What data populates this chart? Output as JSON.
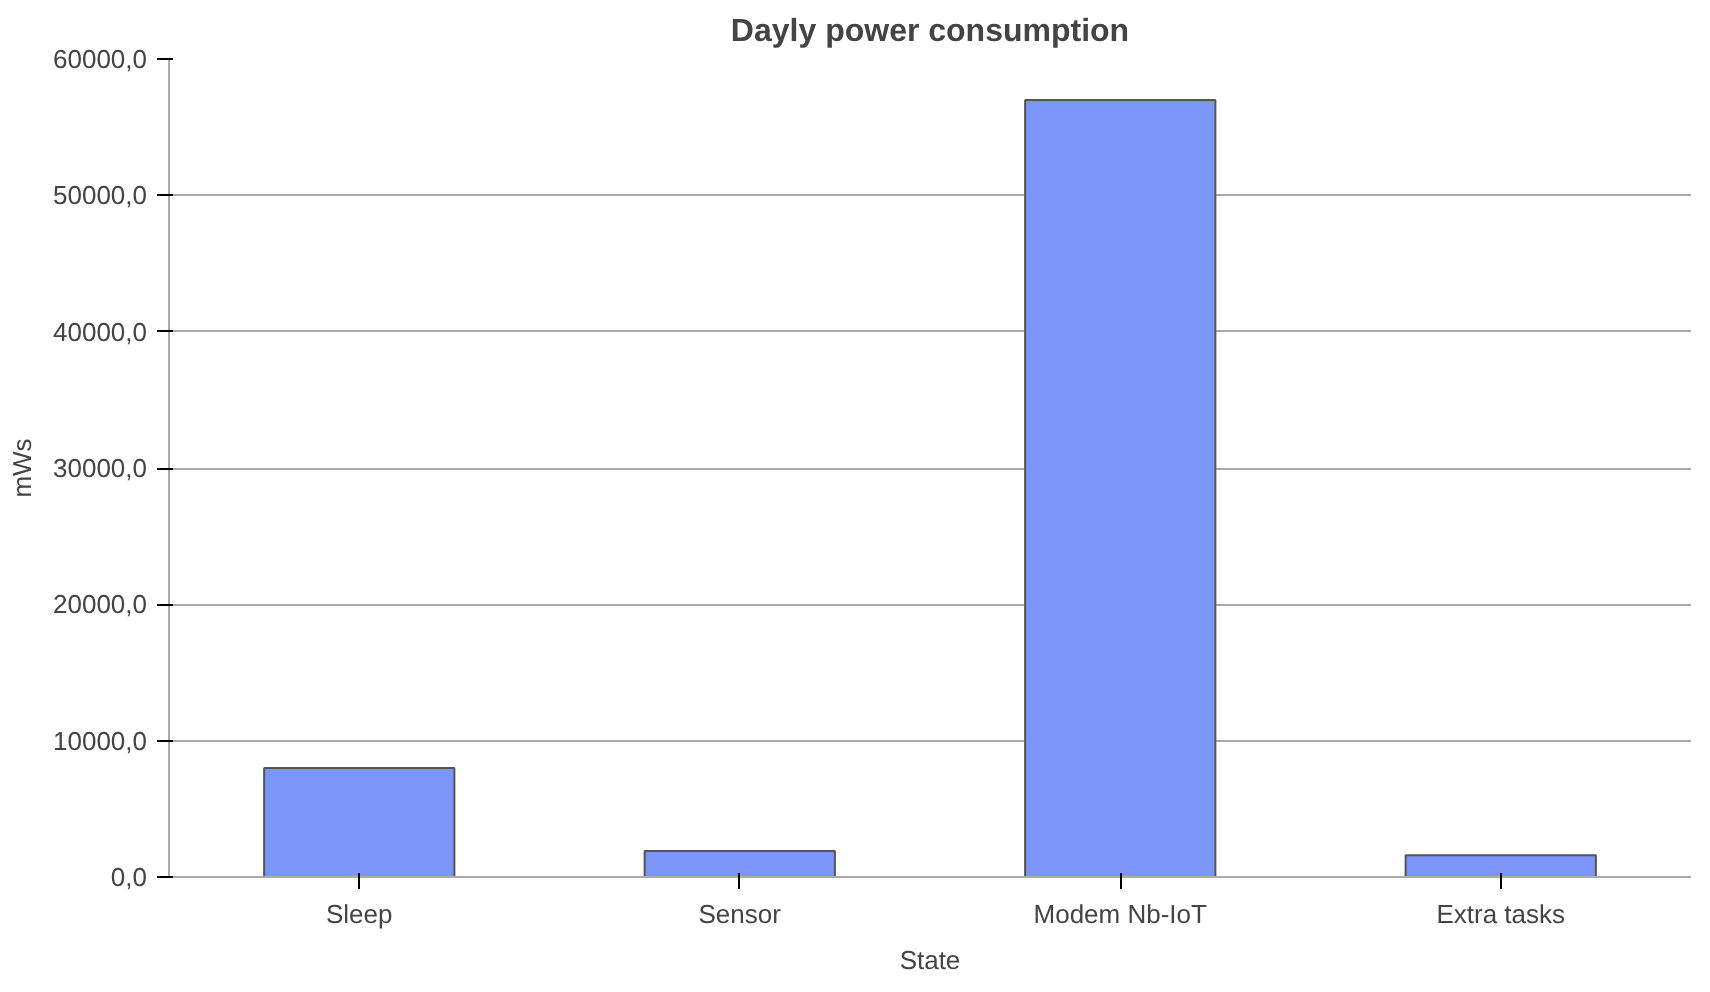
{
  "chart_data": {
    "type": "bar",
    "title": "Dayly power consumption",
    "xlabel": "State",
    "ylabel": "mWs",
    "categories": [
      "Sleep",
      "Sensor",
      "Modem Nb-IoT",
      "Extra tasks"
    ],
    "values": [
      8000,
      1900,
      57000,
      1600
    ],
    "color": "#7b96f8",
    "ylim": [
      0,
      60000
    ],
    "yticks": [
      {
        "value": 0,
        "label": "0,0"
      },
      {
        "value": 10000,
        "label": "10000,0"
      },
      {
        "value": 20000,
        "label": "20000,0"
      },
      {
        "value": 30000,
        "label": "30000,0"
      },
      {
        "value": 40000,
        "label": "40000,0"
      },
      {
        "value": 50000,
        "label": "50000,0"
      },
      {
        "value": 60000,
        "label": "60000,0"
      }
    ],
    "grid": "y"
  }
}
